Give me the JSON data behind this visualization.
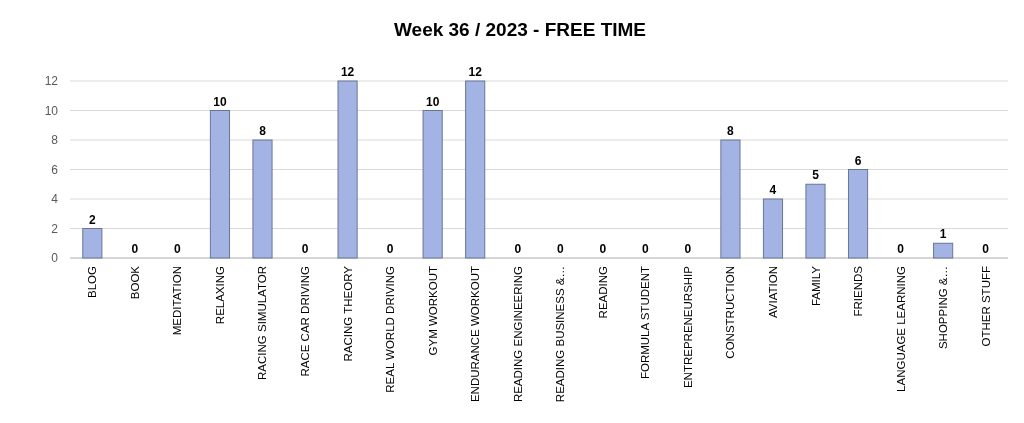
{
  "chart_data": {
    "type": "bar",
    "title": "Week 36 / 2023 - FREE TIME",
    "categories": [
      "BLOG",
      "BOOK",
      "MEDITATION",
      "RELAXING",
      "RACING SIMULATOR",
      "RACE CAR DRIVING",
      "RACING THEORY",
      "REAL WORLD DRIVING",
      "GYM WORKOUT",
      "ENDURANCE WORKOUT",
      "READING ENGINEERING",
      "READING BUSINESS &…",
      "READING",
      "FORMULA STUDENT",
      "ENTREPRENEURSHIP",
      "CONSTRUCTION",
      "AVIATION",
      "FAMILY",
      "FRIENDS",
      "LANGUAGE LEARNING",
      "SHOPPING &…",
      "OTHER STUFF"
    ],
    "values": [
      2,
      0,
      0,
      10,
      8,
      0,
      12,
      0,
      10,
      12,
      0,
      0,
      0,
      0,
      0,
      8,
      4,
      5,
      6,
      0,
      1,
      0
    ],
    "color": "#a3b4e4",
    "ylim": [
      0,
      12
    ],
    "yticks": [
      0,
      2,
      4,
      6,
      8,
      10,
      12
    ],
    "grid": "y",
    "data_labels": true
  }
}
